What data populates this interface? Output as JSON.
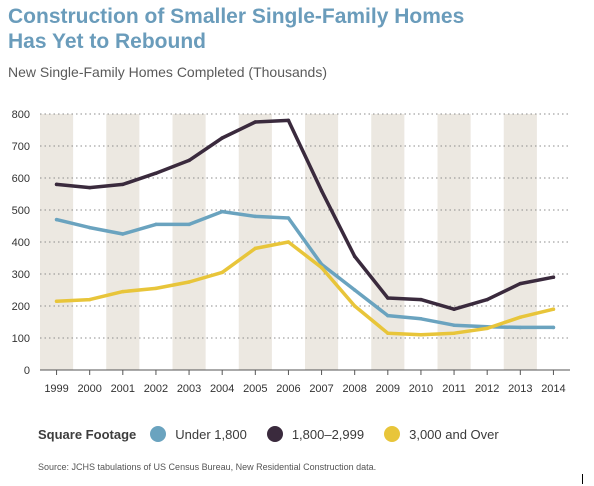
{
  "title_lines": [
    "Construction of Smaller Single-Family Homes",
    "Has Yet to Rebound"
  ],
  "subtitle": "New Single-Family Homes Completed (Thousands)",
  "legend": {
    "title": "Square Footage",
    "items": [
      "Under 1,800",
      "1,800–2,999",
      "3,000 and Over"
    ]
  },
  "source": "Source: JCHS tabulations of US Census Bureau, New Residential Construction data.",
  "colors": {
    "title": "#6a9cbb",
    "series": [
      "#6aa3bf",
      "#3a2a3d",
      "#e8c53a"
    ],
    "band": "#ece8e1"
  },
  "chart_data": {
    "type": "line",
    "title": "New Single-Family Homes Completed (Thousands)",
    "xlabel": "",
    "ylabel": "",
    "categories": [
      "1999",
      "2000",
      "2001",
      "2002",
      "2003",
      "2004",
      "2005",
      "2006",
      "2007",
      "2008",
      "2009",
      "2010",
      "2011",
      "2012",
      "2013",
      "2014"
    ],
    "ylim": [
      0,
      800
    ],
    "yticks": [
      0,
      100,
      200,
      300,
      400,
      500,
      600,
      700,
      800
    ],
    "grid": true,
    "legend_position": "bottom",
    "series": [
      {
        "name": "Under 1,800",
        "values": [
          470,
          445,
          425,
          455,
          455,
          495,
          480,
          475,
          330,
          250,
          170,
          160,
          140,
          135,
          133,
          133
        ]
      },
      {
        "name": "1,800–2,999",
        "values": [
          580,
          570,
          580,
          615,
          655,
          725,
          775,
          780,
          560,
          355,
          225,
          220,
          190,
          220,
          270,
          290
        ]
      },
      {
        "name": "3,000 and Over",
        "values": [
          215,
          220,
          245,
          255,
          275,
          305,
          380,
          400,
          320,
          200,
          115,
          110,
          115,
          130,
          165,
          190
        ]
      }
    ]
  }
}
